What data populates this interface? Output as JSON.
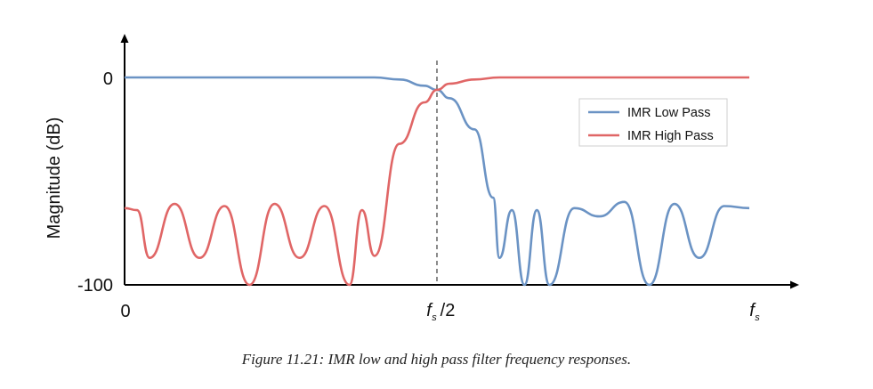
{
  "chart_data": {
    "type": "line",
    "ylabel": "Magnitude (dB)",
    "xlabel": "",
    "y_ticks": [
      "0",
      "-100"
    ],
    "x_ticks": [
      "0",
      "f/2",
      "f"
    ],
    "x_tick_subscript": "s",
    "ylim": [
      -100,
      0
    ],
    "xlim": [
      0,
      1
    ],
    "grid": false,
    "legend_position": "top-right",
    "marker_line": {
      "x": 0.5,
      "style": "dashed",
      "color": "#8c8c8c"
    },
    "series": [
      {
        "name": "IMR Low Pass",
        "color": "#6b93c4",
        "x": [
          0,
          0.4,
          0.44,
          0.48,
          0.5,
          0.52,
          0.56,
          0.59,
          0.6,
          0.62,
          0.64,
          0.66,
          0.68,
          0.72,
          0.76,
          0.8,
          0.84,
          0.88,
          0.92,
          0.96,
          1.0
        ],
        "values": [
          0,
          0,
          -1,
          -4,
          -6,
          -10,
          -25,
          -58,
          -87,
          -64,
          -100,
          -64,
          -100,
          -63,
          -67,
          -60,
          -100,
          -61,
          -87,
          -62,
          -63
        ]
      },
      {
        "name": "IMR High Pass",
        "color": "#e06666",
        "x": [
          0,
          0.02,
          0.04,
          0.08,
          0.12,
          0.16,
          0.2,
          0.24,
          0.28,
          0.32,
          0.36,
          0.38,
          0.4,
          0.44,
          0.48,
          0.5,
          0.52,
          0.56,
          0.6,
          1.0
        ],
        "values": [
          -63,
          -64,
          -87,
          -61,
          -87,
          -62,
          -100,
          -61,
          -87,
          -62,
          -100,
          -64,
          -86,
          -32,
          -12,
          -6,
          -3,
          -1,
          0,
          0
        ]
      }
    ]
  },
  "caption": "Figure 11.21:  IMR low and high pass filter frequency responses."
}
